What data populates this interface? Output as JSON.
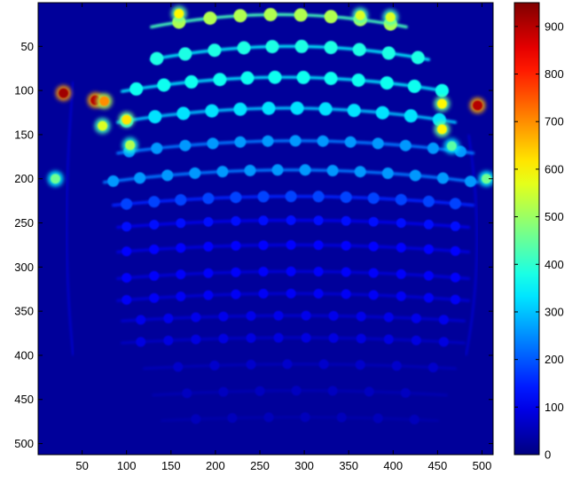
{
  "chart_data": {
    "type": "heatmap",
    "title": "",
    "xlabel": "",
    "ylabel": "",
    "xlim": [
      0.5,
      512.5
    ],
    "ylim": [
      0.5,
      512.5
    ],
    "y_axis_reversed": true,
    "x_ticks": [
      "50",
      "100",
      "150",
      "200",
      "250",
      "300",
      "350",
      "400",
      "450",
      "500"
    ],
    "x_tick_values": [
      50,
      100,
      150,
      200,
      250,
      300,
      350,
      400,
      450,
      500
    ],
    "y_ticks": [
      "50",
      "100",
      "150",
      "200",
      "250",
      "300",
      "350",
      "400",
      "450",
      "500"
    ],
    "y_tick_values": [
      50,
      100,
      150,
      200,
      250,
      300,
      350,
      400,
      450,
      500
    ],
    "colorbar": {
      "colormap": "jet",
      "clim": [
        0,
        950
      ],
      "ticks": [
        "0",
        "100",
        "200",
        "300",
        "400",
        "500",
        "600",
        "700",
        "800",
        "900"
      ],
      "tick_values": [
        0,
        100,
        200,
        300,
        400,
        500,
        600,
        700,
        800,
        900
      ]
    },
    "background_value": 25,
    "arcs": [
      {
        "y_center": 14,
        "sag": 14,
        "x_start": 128,
        "x_end": 415,
        "line_value": 420,
        "dot_value": 520,
        "dot_x": [
          159,
          194,
          228,
          262,
          296,
          330,
          363,
          397
        ]
      },
      {
        "y_center": 50,
        "sag": 15,
        "x_start": 128,
        "x_end": 440,
        "line_value": 340,
        "dot_value": 380,
        "dot_x": [
          134,
          166,
          199,
          232,
          264,
          297,
          330,
          362,
          395,
          428
        ]
      },
      {
        "y_center": 85,
        "sag": 16,
        "x_start": 95,
        "x_end": 460,
        "line_value": 330,
        "dot_value": 370,
        "dot_x": [
          111,
          142,
          173,
          205,
          236,
          267,
          299,
          330,
          361,
          393,
          424,
          455
        ]
      },
      {
        "y_center": 120,
        "sag": 16,
        "x_start": 90,
        "x_end": 470,
        "line_value": 300,
        "dot_value": 330,
        "dot_x": [
          100,
          132,
          164,
          196,
          228,
          260,
          292,
          324,
          356,
          388,
          420,
          452
        ]
      },
      {
        "y_center": 157,
        "sag": 14,
        "x_start": 90,
        "x_end": 490,
        "line_value": 230,
        "dot_value": 260,
        "dot_x": [
          103,
          134,
          166,
          197,
          228,
          259,
          290,
          321,
          352,
          383,
          414,
          445,
          476
        ]
      },
      {
        "y_center": 190,
        "sag": 14,
        "x_start": 75,
        "x_end": 495,
        "line_value": 230,
        "dot_value": 260,
        "dot_x": [
          85,
          115,
          146,
          177,
          208,
          239,
          270,
          301,
          332,
          363,
          394,
          425,
          456,
          487
        ]
      },
      {
        "y_center": 220,
        "sag": 10,
        "x_start": 85,
        "x_end": 490,
        "line_value": 150,
        "dot_value": 180,
        "dot_x": [
          100,
          131,
          161,
          192,
          223,
          254,
          285,
          316,
          347,
          378,
          409,
          440,
          470
        ]
      },
      {
        "y_center": 247,
        "sag": 8,
        "x_start": 90,
        "x_end": 485,
        "line_value": 95,
        "dot_value": 130,
        "dot_x": [
          100,
          131,
          161,
          192,
          223,
          254,
          285,
          316,
          347,
          378,
          409,
          440,
          470
        ]
      },
      {
        "y_center": 275,
        "sag": 8,
        "x_start": 90,
        "x_end": 485,
        "line_value": 85,
        "dot_value": 120,
        "dot_x": [
          100,
          131,
          161,
          192,
          223,
          254,
          285,
          316,
          347,
          378,
          409,
          440,
          470
        ]
      },
      {
        "y_center": 305,
        "sag": 8,
        "x_start": 90,
        "x_end": 485,
        "line_value": 80,
        "dot_value": 115,
        "dot_x": [
          100,
          131,
          161,
          192,
          223,
          254,
          285,
          316,
          347,
          378,
          409,
          440,
          470
        ]
      },
      {
        "y_center": 330,
        "sag": 8,
        "x_start": 90,
        "x_end": 485,
        "line_value": 75,
        "dot_value": 110,
        "dot_x": [
          100,
          131,
          161,
          192,
          223,
          254,
          285,
          316,
          347,
          378,
          409,
          440,
          470
        ]
      },
      {
        "y_center": 355,
        "sag": 6,
        "x_start": 95,
        "x_end": 480,
        "line_value": 70,
        "dot_value": 100,
        "dot_x": [
          116,
          147,
          178,
          209,
          240,
          271,
          302,
          333,
          364,
          395,
          426,
          457
        ]
      },
      {
        "y_center": 380,
        "sag": 6,
        "x_start": 95,
        "x_end": 480,
        "line_value": 60,
        "dot_value": 90,
        "dot_x": [
          116,
          147,
          178,
          209,
          240,
          271,
          302,
          333,
          364,
          395,
          426,
          457
        ]
      },
      {
        "y_center": 410,
        "sag": 5,
        "x_start": 120,
        "x_end": 470,
        "line_value": 50,
        "dot_value": 70,
        "dot_x": [
          158,
          199,
          240,
          281,
          322,
          363,
          404,
          445
        ]
      },
      {
        "y_center": 440,
        "sag": 5,
        "x_start": 130,
        "x_end": 460,
        "line_value": 45,
        "dot_value": 60,
        "dot_x": [
          168,
          209,
          250,
          291,
          332,
          373,
          414
        ]
      },
      {
        "y_center": 470,
        "sag": 4,
        "x_start": 140,
        "x_end": 450,
        "line_value": 40,
        "dot_value": 55,
        "dot_x": [
          178,
          219,
          260,
          301,
          342,
          383,
          424
        ]
      }
    ],
    "highlights": [
      {
        "x": 29,
        "y": 103,
        "value": 920
      },
      {
        "x": 65,
        "y": 111,
        "value": 900
      },
      {
        "x": 75,
        "y": 112,
        "value": 700
      },
      {
        "x": 495,
        "y": 117,
        "value": 900
      },
      {
        "x": 159,
        "y": 13,
        "value": 600
      },
      {
        "x": 100,
        "y": 133,
        "value": 620
      },
      {
        "x": 73,
        "y": 140,
        "value": 560
      },
      {
        "x": 455,
        "y": 115,
        "value": 600
      },
      {
        "x": 455,
        "y": 144,
        "value": 600
      },
      {
        "x": 363,
        "y": 15,
        "value": 560
      },
      {
        "x": 397,
        "y": 17,
        "value": 560
      },
      {
        "x": 104,
        "y": 162,
        "value": 520
      },
      {
        "x": 466,
        "y": 163,
        "value": 440
      },
      {
        "x": 20,
        "y": 200,
        "value": 460
      },
      {
        "x": 505,
        "y": 200,
        "value": 460
      }
    ]
  }
}
